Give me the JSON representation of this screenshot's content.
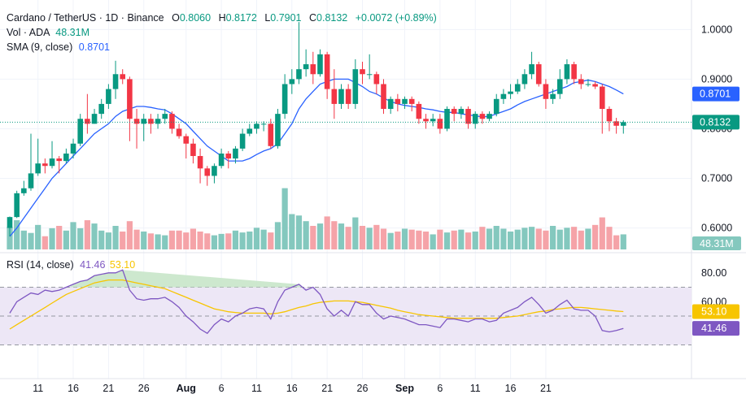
{
  "legend": {
    "symbol": "Cardano / TetherUS · 1D · Binance",
    "o_key": "O",
    "o_val": "0.8060",
    "h_key": "H",
    "h_val": "0.8172",
    "l_key": "L",
    "l_val": "0.7901",
    "c_key": "C",
    "c_val": "0.8132",
    "change": "+0.0072 (+0.89%)",
    "vol_label": "Vol · ADA",
    "vol_val": "48.31M",
    "sma_label": "SMA (9, close)",
    "sma_val": "0.8701",
    "rsi_label": "RSI (14, close)",
    "rsi_val": "41.46",
    "rsi_ma_val": "53.10"
  },
  "colors": {
    "up": "#089981",
    "down": "#f23645",
    "up_volume": "#84c8be",
    "down_volume": "#f5a3a8",
    "sma": "#2962ff",
    "rsi": "#7e57c2",
    "rsi_ma": "#f7c500",
    "rsi_band": "#ede7f6",
    "overbought_fill": "#c8e6c9"
  },
  "chart_data": [
    {
      "type": "candlestick",
      "title": "Cardano / TetherUS · 1D · Binance",
      "ylim": [
        0.56,
        1.03
      ],
      "yticks": [
        1.0,
        0.9,
        0.8,
        0.7,
        0.6
      ],
      "ytick_labels": [
        "1.0000",
        "0.9000",
        "0.8000",
        "0.7000",
        "0.6000"
      ],
      "xticks": [
        {
          "day": 4,
          "label": "11"
        },
        {
          "day": 9,
          "label": "16"
        },
        {
          "day": 14,
          "label": "21"
        },
        {
          "day": 19,
          "label": "26"
        },
        {
          "day": 25,
          "label": "Aug"
        },
        {
          "day": 30,
          "label": "6"
        },
        {
          "day": 35,
          "label": "11"
        },
        {
          "day": 40,
          "label": "16"
        },
        {
          "day": 45,
          "label": "21"
        },
        {
          "day": 50,
          "label": "26"
        },
        {
          "day": 56,
          "label": "Sep"
        },
        {
          "day": 61,
          "label": "6"
        },
        {
          "day": 66,
          "label": "11"
        },
        {
          "day": 71,
          "label": "16"
        },
        {
          "day": 76,
          "label": "21"
        }
      ],
      "candles": [
        [
          0.6,
          0.622,
          0.583,
          0.623
        ],
        [
          0.622,
          0.67,
          0.62,
          0.675
        ],
        [
          0.67,
          0.68,
          0.665,
          0.695
        ],
        [
          0.68,
          0.71,
          0.675,
          0.79
        ],
        [
          0.71,
          0.73,
          0.705,
          0.78
        ],
        [
          0.73,
          0.725,
          0.71,
          0.74
        ],
        [
          0.725,
          0.74,
          0.72,
          0.775
        ],
        [
          0.74,
          0.735,
          0.71,
          0.745
        ],
        [
          0.735,
          0.75,
          0.73,
          0.76
        ],
        [
          0.75,
          0.77,
          0.74,
          0.78
        ],
        [
          0.77,
          0.82,
          0.765,
          0.83
        ],
        [
          0.82,
          0.81,
          0.79,
          0.87
        ],
        [
          0.81,
          0.83,
          0.81,
          0.84
        ],
        [
          0.83,
          0.85,
          0.82,
          0.86
        ],
        [
          0.85,
          0.88,
          0.84,
          0.89
        ],
        [
          0.88,
          0.91,
          0.86,
          0.937
        ],
        [
          0.91,
          0.9,
          0.89,
          0.92
        ],
        [
          0.9,
          0.82,
          0.775,
          0.905
        ],
        [
          0.82,
          0.81,
          0.76,
          0.84
        ],
        [
          0.81,
          0.82,
          0.775,
          0.83
        ],
        [
          0.82,
          0.81,
          0.79,
          0.83
        ],
        [
          0.81,
          0.82,
          0.8,
          0.83
        ],
        [
          0.82,
          0.83,
          0.81,
          0.84
        ],
        [
          0.83,
          0.8,
          0.79,
          0.835
        ],
        [
          0.8,
          0.785,
          0.78,
          0.81
        ],
        [
          0.785,
          0.77,
          0.74,
          0.79
        ],
        [
          0.77,
          0.745,
          0.73,
          0.78
        ],
        [
          0.745,
          0.72,
          0.69,
          0.76
        ],
        [
          0.72,
          0.705,
          0.685,
          0.725
        ],
        [
          0.705,
          0.725,
          0.69,
          0.73
        ],
        [
          0.725,
          0.75,
          0.72,
          0.76
        ],
        [
          0.75,
          0.74,
          0.72,
          0.755
        ],
        [
          0.74,
          0.76,
          0.73,
          0.765
        ],
        [
          0.76,
          0.79,
          0.755,
          0.8
        ],
        [
          0.79,
          0.8,
          0.785,
          0.81
        ],
        [
          0.8,
          0.81,
          0.79,
          0.815
        ],
        [
          0.81,
          0.81,
          0.795,
          0.815
        ],
        [
          0.81,
          0.765,
          0.76,
          0.82
        ],
        [
          0.765,
          0.83,
          0.76,
          0.84
        ],
        [
          0.83,
          0.89,
          0.82,
          0.91
        ],
        [
          0.89,
          0.9,
          0.87,
          0.92
        ],
        [
          0.9,
          0.92,
          0.89,
          1.015
        ],
        [
          0.92,
          0.93,
          0.905,
          0.96
        ],
        [
          0.93,
          0.91,
          0.89,
          0.955
        ],
        [
          0.91,
          0.95,
          0.905,
          0.96
        ],
        [
          0.95,
          0.88,
          0.86,
          0.955
        ],
        [
          0.88,
          0.85,
          0.82,
          0.92
        ],
        [
          0.85,
          0.88,
          0.84,
          0.89
        ],
        [
          0.88,
          0.85,
          0.84,
          0.89
        ],
        [
          0.85,
          0.92,
          0.84,
          0.94
        ],
        [
          0.92,
          0.91,
          0.89,
          0.935
        ],
        [
          0.91,
          0.91,
          0.9,
          0.95
        ],
        [
          0.91,
          0.89,
          0.87,
          0.915
        ],
        [
          0.89,
          0.84,
          0.83,
          0.9
        ],
        [
          0.84,
          0.86,
          0.83,
          0.865
        ],
        [
          0.86,
          0.85,
          0.835,
          0.87
        ],
        [
          0.85,
          0.86,
          0.84,
          0.865
        ],
        [
          0.86,
          0.85,
          0.835,
          0.865
        ],
        [
          0.85,
          0.82,
          0.81,
          0.855
        ],
        [
          0.82,
          0.815,
          0.8,
          0.83
        ],
        [
          0.815,
          0.82,
          0.805,
          0.83
        ],
        [
          0.82,
          0.8,
          0.79,
          0.83
        ],
        [
          0.8,
          0.84,
          0.795,
          0.845
        ],
        [
          0.84,
          0.83,
          0.815,
          0.845
        ],
        [
          0.83,
          0.84,
          0.82,
          0.845
        ],
        [
          0.84,
          0.81,
          0.8,
          0.845
        ],
        [
          0.81,
          0.83,
          0.8,
          0.835
        ],
        [
          0.83,
          0.82,
          0.81,
          0.835
        ],
        [
          0.82,
          0.83,
          0.815,
          0.835
        ],
        [
          0.83,
          0.86,
          0.825,
          0.87
        ],
        [
          0.86,
          0.87,
          0.85,
          0.88
        ],
        [
          0.87,
          0.875,
          0.86,
          0.89
        ],
        [
          0.875,
          0.89,
          0.87,
          0.9
        ],
        [
          0.89,
          0.91,
          0.88,
          0.92
        ],
        [
          0.91,
          0.93,
          0.9,
          0.955
        ],
        [
          0.93,
          0.89,
          0.885,
          0.935
        ],
        [
          0.89,
          0.86,
          0.84,
          0.9
        ],
        [
          0.86,
          0.87,
          0.85,
          0.88
        ],
        [
          0.87,
          0.9,
          0.86,
          0.92
        ],
        [
          0.9,
          0.93,
          0.89,
          0.94
        ],
        [
          0.93,
          0.9,
          0.89,
          0.935
        ],
        [
          0.9,
          0.89,
          0.88,
          0.91
        ],
        [
          0.89,
          0.89,
          0.885,
          0.9
        ],
        [
          0.89,
          0.885,
          0.88,
          0.895
        ],
        [
          0.885,
          0.84,
          0.79,
          0.89
        ],
        [
          0.84,
          0.815,
          0.795,
          0.845
        ],
        [
          0.815,
          0.806,
          0.79,
          0.822
        ],
        [
          0.806,
          0.8132,
          0.7901,
          0.8172
        ]
      ],
      "volume_max_label": "48.31M",
      "volumes": [
        48,
        62,
        40,
        35,
        52,
        28,
        45,
        50,
        40,
        58,
        45,
        62,
        55,
        40,
        36,
        50,
        38,
        60,
        42,
        38,
        34,
        32,
        30,
        40,
        40,
        36,
        44,
        38,
        34,
        30,
        33,
        34,
        40,
        36,
        38,
        46,
        42,
        36,
        58,
        130,
        75,
        72,
        60,
        50,
        55,
        70,
        60,
        55,
        48,
        68,
        50,
        46,
        52,
        44,
        35,
        38,
        44,
        42,
        40,
        38,
        32,
        42,
        36,
        40,
        42,
        36,
        38,
        48,
        44,
        50,
        44,
        38,
        42,
        46,
        48,
        44,
        40,
        50,
        42,
        46,
        48,
        40,
        44,
        52,
        68,
        48,
        30,
        32
      ],
      "sma": {
        "name": "SMA (9, close)",
        "values": [
          0.583,
          0.6,
          0.62,
          0.64,
          0.66,
          0.68,
          0.7,
          0.715,
          0.73,
          0.745,
          0.76,
          0.775,
          0.79,
          0.8,
          0.81,
          0.825,
          0.835,
          0.84,
          0.845,
          0.845,
          0.843,
          0.84,
          0.838,
          0.83,
          0.82,
          0.81,
          0.795,
          0.78,
          0.765,
          0.755,
          0.745,
          0.735,
          0.735,
          0.735,
          0.74,
          0.748,
          0.755,
          0.76,
          0.77,
          0.79,
          0.81,
          0.84,
          0.86,
          0.875,
          0.89,
          0.895,
          0.9,
          0.9,
          0.9,
          0.893,
          0.885,
          0.875,
          0.87,
          0.862,
          0.855,
          0.85,
          0.847,
          0.845,
          0.843,
          0.84,
          0.838,
          0.835,
          0.833,
          0.833,
          0.83,
          0.828,
          0.826,
          0.824,
          0.825,
          0.83,
          0.835,
          0.84,
          0.848,
          0.855,
          0.86,
          0.865,
          0.87,
          0.875,
          0.88,
          0.885,
          0.893,
          0.895,
          0.898,
          0.895,
          0.89,
          0.885,
          0.878,
          0.8701
        ]
      },
      "last_price_label": "0.8132"
    },
    {
      "type": "line",
      "title": "RSI (14, close)",
      "ylim": [
        10,
        90
      ],
      "yticks": [
        80,
        60
      ],
      "ytick_labels": [
        "80.00",
        "60.00"
      ],
      "bands": {
        "upper": 70,
        "middle": 50,
        "lower": 30
      },
      "series": [
        {
          "name": "RSI",
          "values": [
            52,
            60,
            63,
            66,
            65,
            68,
            67,
            68,
            70,
            72,
            74,
            75,
            78,
            79,
            80,
            80,
            82,
            68,
            62,
            61,
            62,
            62,
            63,
            60,
            56,
            50,
            46,
            41,
            38,
            44,
            48,
            46,
            50,
            52,
            55,
            56,
            55,
            48,
            60,
            68,
            70,
            72,
            68,
            70,
            65,
            55,
            50,
            54,
            50,
            60,
            58,
            58,
            52,
            48,
            50,
            49,
            48,
            46,
            44,
            44,
            43,
            42,
            48,
            48,
            47,
            46,
            48,
            48,
            46,
            47,
            52,
            54,
            56,
            60,
            63,
            58,
            52,
            54,
            58,
            61,
            55,
            54,
            54,
            50,
            40,
            39,
            40,
            41.46
          ]
        },
        {
          "name": "MA",
          "values": [
            41,
            44,
            47,
            50,
            53,
            56,
            59,
            62,
            65,
            67,
            69,
            71,
            73,
            74,
            75,
            75,
            75,
            74,
            73,
            72,
            71,
            70,
            69,
            67,
            65,
            63,
            61,
            59,
            57,
            55,
            54,
            53,
            52.5,
            52,
            52,
            52,
            52,
            51.5,
            52,
            53,
            54.5,
            56,
            57,
            58.5,
            59.5,
            60,
            60.5,
            60.5,
            60.5,
            60,
            59.5,
            58.5,
            57.5,
            56.5,
            55.5,
            54,
            53,
            52,
            51,
            50.5,
            50,
            49.5,
            49,
            48.5,
            48.5,
            48.5,
            48.5,
            48.5,
            48.5,
            48.5,
            49,
            49.5,
            50,
            51,
            52,
            53,
            53.5,
            54.5,
            55,
            55.5,
            56,
            56,
            55.5,
            55,
            54.5,
            54,
            53.5,
            53.1
          ]
        }
      ]
    }
  ]
}
